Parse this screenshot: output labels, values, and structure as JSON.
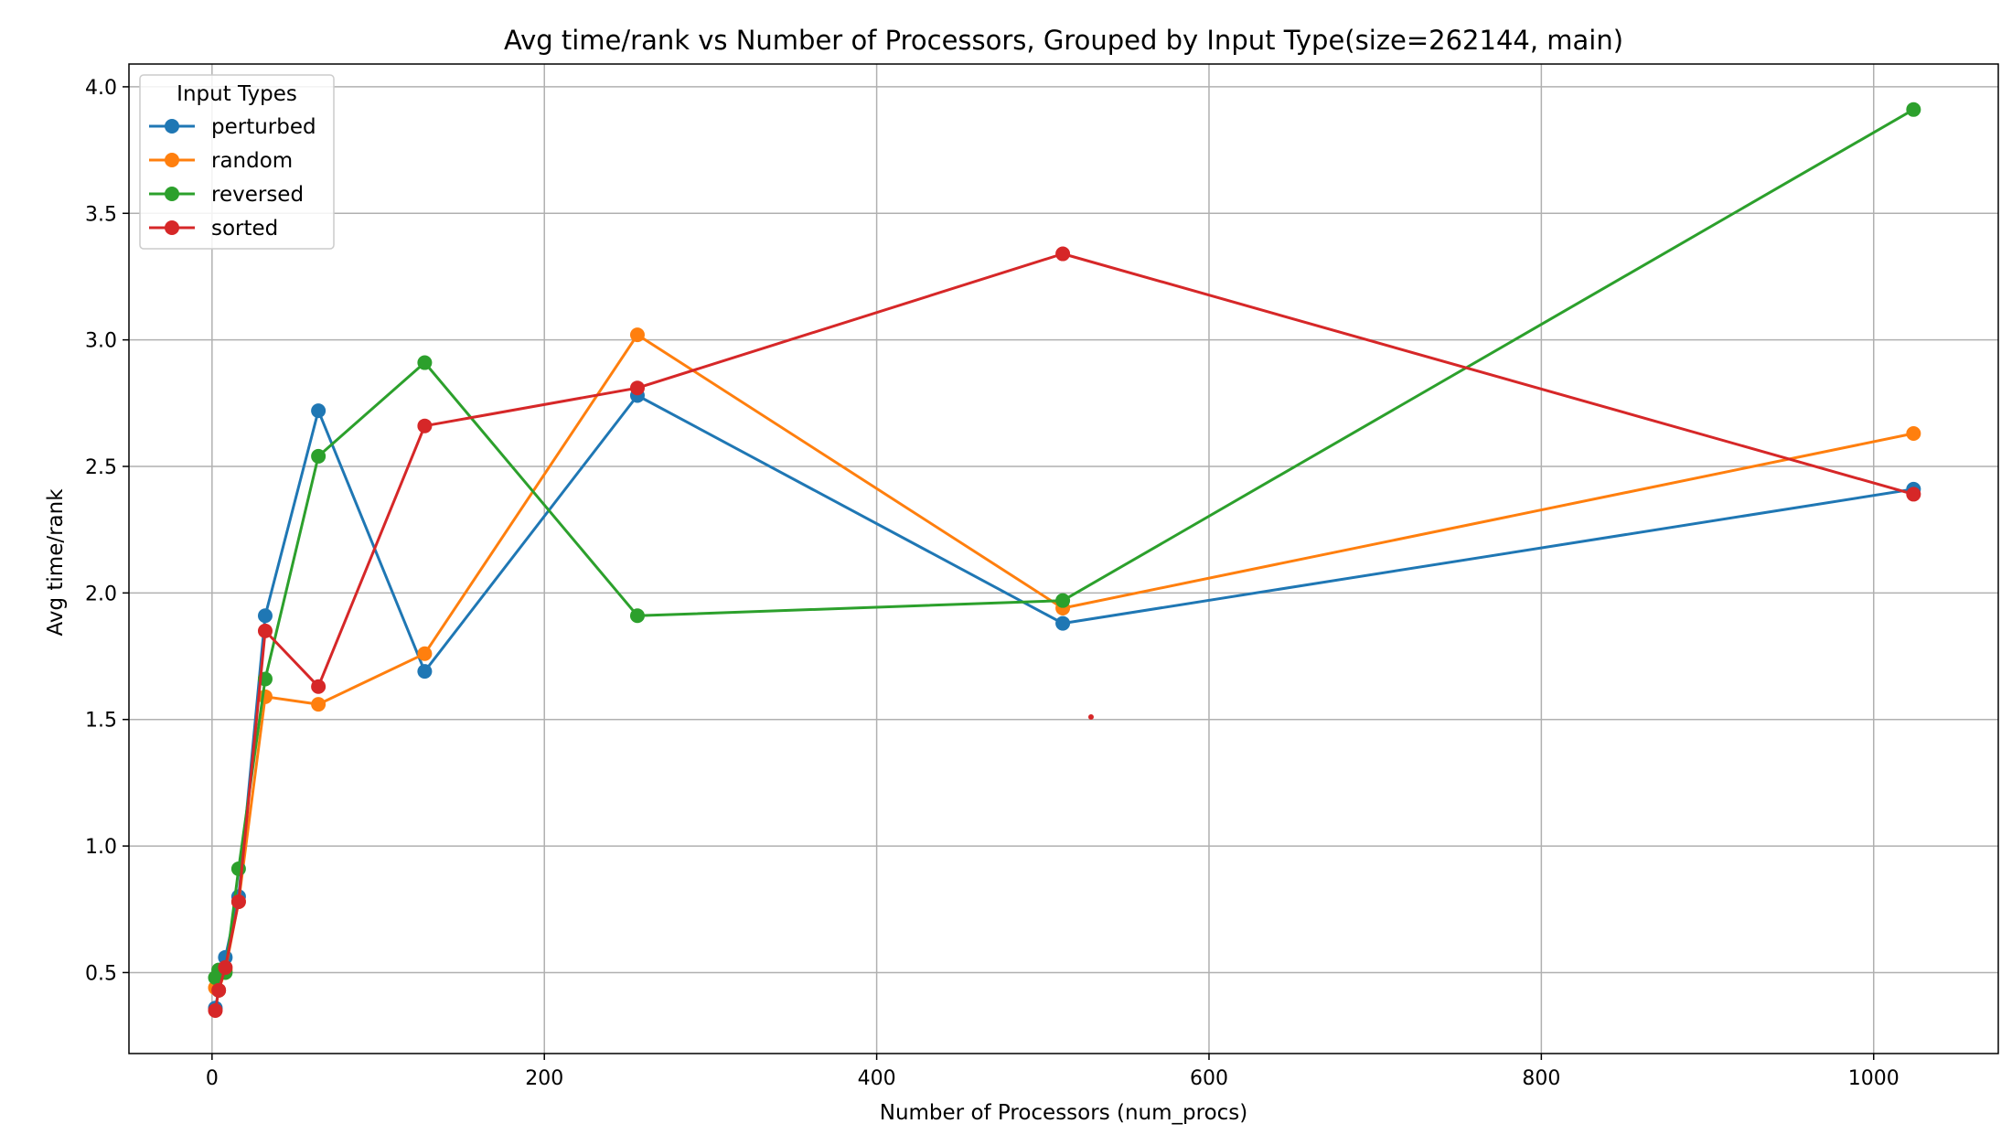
{
  "chart_data": {
    "type": "line",
    "title": "Avg time/rank vs Number of Processors, Grouped by Input Type(size=262144, main)",
    "xlabel": "Number of Processors (num_procs)",
    "ylabel": "Avg time/rank",
    "xlim": [
      -50,
      1075
    ],
    "ylim": [
      0.18,
      4.09
    ],
    "xticks": [
      0,
      200,
      400,
      600,
      800,
      1000
    ],
    "yticks": [
      0.5,
      1.0,
      1.5,
      2.0,
      2.5,
      3.0,
      3.5,
      4.0
    ],
    "xtick_labels": [
      "0",
      "200",
      "400",
      "600",
      "800",
      "1000"
    ],
    "ytick_labels": [
      "0.5",
      "1.0",
      "1.5",
      "2.0",
      "2.5",
      "3.0",
      "3.5",
      "4.0"
    ],
    "grid": true,
    "legend": {
      "title": "Input Types",
      "placement": "top-left"
    },
    "x": [
      2,
      4,
      8,
      16,
      32,
      64,
      128,
      256,
      512,
      1024
    ],
    "series": [
      {
        "name": "perturbed",
        "color": "#1f77b4",
        "values": [
          0.36,
          0.43,
          0.56,
          0.8,
          1.91,
          2.72,
          1.69,
          2.78,
          1.88,
          2.41
        ]
      },
      {
        "name": "random",
        "color": "#ff7f0e",
        "values": [
          0.44,
          0.43,
          0.51,
          0.78,
          1.59,
          1.56,
          1.76,
          3.02,
          1.94,
          2.63
        ]
      },
      {
        "name": "reversed",
        "color": "#2ca02c",
        "values": [
          0.48,
          0.51,
          0.5,
          0.91,
          1.66,
          2.54,
          2.91,
          1.91,
          1.97,
          3.91
        ]
      },
      {
        "name": "sorted",
        "color": "#d62728",
        "values": [
          0.35,
          0.43,
          0.52,
          0.78,
          1.85,
          1.63,
          2.66,
          2.81,
          3.34,
          2.39
        ]
      }
    ],
    "annotations": [
      {
        "x": 529,
        "y": 1.51,
        "color": "#d62728"
      }
    ]
  }
}
